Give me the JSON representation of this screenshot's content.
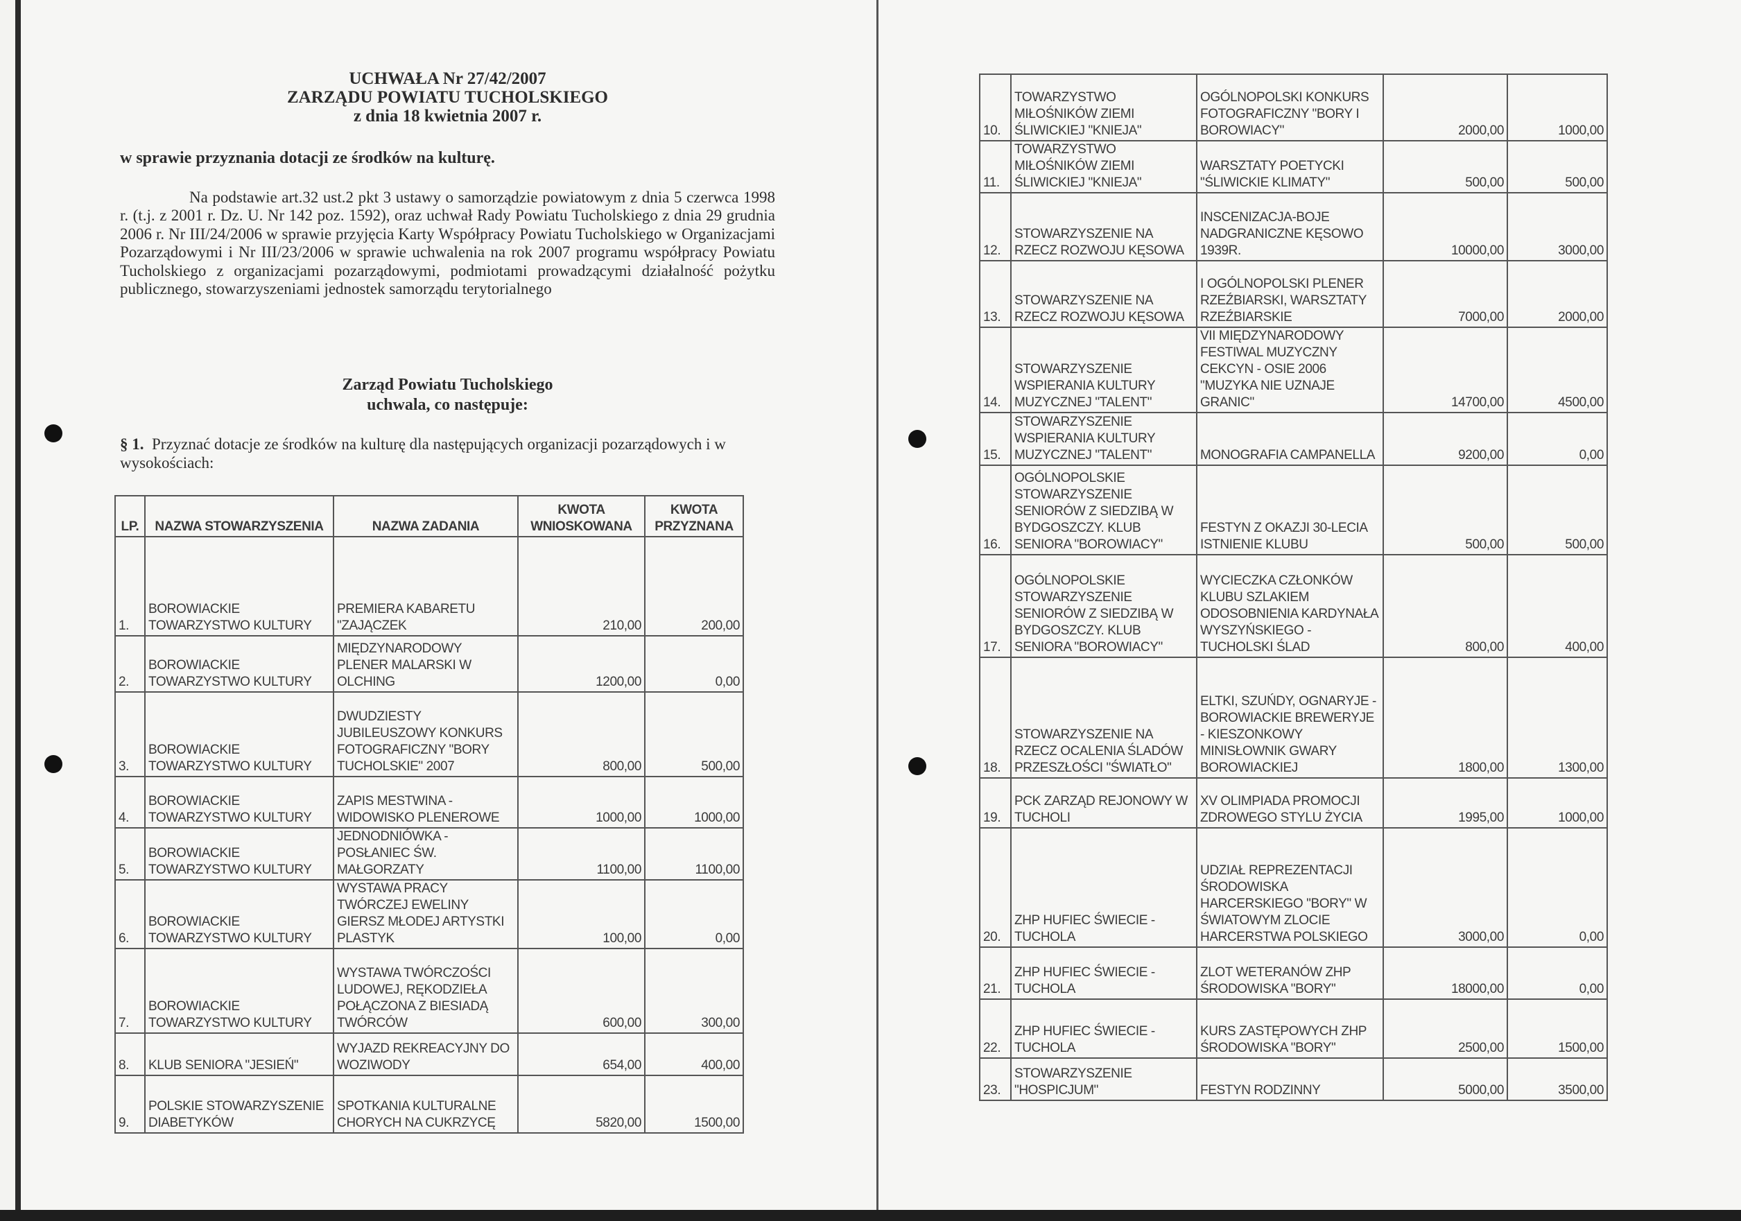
{
  "left_page": {
    "title_lines": [
      "UCHWAŁA Nr 27/42/2007",
      "ZARZĄDU POWIATU TUCHOLSKIEGO",
      "z dnia 18 kwietnia 2007 r."
    ],
    "subject": "w sprawie przyznania dotacji ze środków na kulturę.",
    "preamble": "Na podstawie art.32 ust.2 pkt 3 ustawy o samorządzie powiatowym z dnia 5 czerwca 1998 r. (t.j. z 2001 r. Dz. U. Nr 142 poz. 1592), oraz uchwał Rady Powiatu Tucholskiego z dnia 29 grudnia 2006 r. Nr III/24/2006 w sprawie przyjęcia Karty Współpracy Powiatu Tucholskiego w Organizacjami Pozarządowymi i Nr III/23/2006 w sprawie uchwalenia na rok 2007 programu współpracy Powiatu Tucholskiego z organizacjami pozarządowymi, podmiotami prowadzącymi działalność pożytku publicznego, stowarzyszeniami jednostek samorządu terytorialnego",
    "board_lines": [
      "Zarząd Powiatu Tucholskiego",
      "uchwala, co następuje:"
    ],
    "paragraph_label": "§ 1.",
    "paragraph_text": "Przyznać dotacje ze środków na kulturę dla następujących organizacji pozarządowych i w wysokościach:"
  },
  "table": {
    "headers": [
      "LP.",
      "NAZWA STOWARZYSZENIA",
      "NAZWA ZADANIA",
      "KWOTA WNIOSKOWANA",
      "KWOTA PRZYZNANA"
    ],
    "rows": [
      {
        "lp": "1.",
        "org": "BOROWIACKIE TOWARZYSTWO KULTURY",
        "task": "PREMIERA KABARETU \"ZAJĄCZEK",
        "requested": "210,00",
        "granted": "200,00"
      },
      {
        "lp": "2.",
        "org": "BOROWIACKIE TOWARZYSTWO KULTURY",
        "task": "MIĘDZYNARODOWY PLENER MALARSKI W OLCHING",
        "requested": "1200,00",
        "granted": "0,00"
      },
      {
        "lp": "3.",
        "org": "BOROWIACKIE TOWARZYSTWO KULTURY",
        "task": "DWUDZIESTY JUBILEUSZOWY KONKURS FOTOGRAFICZNY \"BORY TUCHOLSKIE\" 2007",
        "requested": "800,00",
        "granted": "500,00"
      },
      {
        "lp": "4.",
        "org": "BOROWIACKIE TOWARZYSTWO KULTURY",
        "task": "ZAPIS MESTWINA - WIDOWISKO PLENEROWE",
        "requested": "1000,00",
        "granted": "1000,00"
      },
      {
        "lp": "5.",
        "org": "BOROWIACKIE TOWARZYSTWO KULTURY",
        "task": "JEDNODNIÓWKA - POSŁANIEC ŚW. MAŁGORZATY",
        "requested": "1100,00",
        "granted": "1100,00"
      },
      {
        "lp": "6.",
        "org": "BOROWIACKIE TOWARZYSTWO KULTURY",
        "task": "WYSTAWA PRACY TWÓRCZEJ EWELINY GIERSZ MŁODEJ ARTYSTKI PLASTYK",
        "requested": "100,00",
        "granted": "0,00"
      },
      {
        "lp": "7.",
        "org": "BOROWIACKIE TOWARZYSTWO KULTURY",
        "task": "WYSTAWA TWÓRCZOŚCI LUDOWEJ, RĘKODZIEŁA POŁĄCZONA Z BIESIADĄ TWÓRCÓW",
        "requested": "600,00",
        "granted": "300,00"
      },
      {
        "lp": "8.",
        "org": "KLUB SENIORA \"JESIEŃ\"",
        "task": "WYJAZD REKREACYJNY DO WOZIWODY",
        "requested": "654,00",
        "granted": "400,00"
      },
      {
        "lp": "9.",
        "org": "POLSKIE STOWARZYSZENIE DIABETYKÓW",
        "task": "SPOTKANIA KULTURALNE CHORYCH NA CUKRZYCĘ",
        "requested": "5820,00",
        "granted": "1500,00"
      },
      {
        "lp": "10.",
        "org": "TOWARZYSTWO MIŁOŚNIKÓW ZIEMI ŚLIWICKIEJ \"KNIEJA\"",
        "task": "OGÓLNOPOLSKI KONKURS FOTOGRAFICZNY \"BORY I BOROWIACY\"",
        "requested": "2000,00",
        "granted": "1000,00"
      },
      {
        "lp": "11.",
        "org": "TOWARZYSTWO MIŁOŚNIKÓW ZIEMI ŚLIWICKIEJ \"KNIEJA\"",
        "task": "WARSZTATY POETYCKI \"ŚLIWICKIE KLIMATY\"",
        "requested": "500,00",
        "granted": "500,00"
      },
      {
        "lp": "12.",
        "org": "STOWARZYSZENIE NA RZECZ ROZWOJU KĘSOWA",
        "task": "INSCENIZACJA-BOJE NADGRANICZNE KĘSOWO 1939R.",
        "requested": "10000,00",
        "granted": "3000,00"
      },
      {
        "lp": "13.",
        "org": "STOWARZYSZENIE NA RZECZ ROZWOJU KĘSOWA",
        "task": "I OGÓLNOPOLSKI PLENER RZEŹBIARSKI, WARSZTATY RZEŹBIARSKIE",
        "requested": "7000,00",
        "granted": "2000,00"
      },
      {
        "lp": "14.",
        "org": "STOWARZYSZENIE WSPIERANIA KULTURY MUZYCZNEJ \"TALENT\"",
        "task": "VII MIĘDZYNARODOWY FESTIWAL MUZYCZNY CEKCYN - OSIE 2006 \"MUZYKA NIE UZNAJE GRANIC\"",
        "requested": "14700,00",
        "granted": "4500,00"
      },
      {
        "lp": "15.",
        "org": "STOWARZYSZENIE WSPIERANIA KULTURY MUZYCZNEJ \"TALENT\"",
        "task": "MONOGRAFIA CAMPANELLA",
        "requested": "9200,00",
        "granted": "0,00"
      },
      {
        "lp": "16.",
        "org": "OGÓLNOPOLSKIE STOWARZYSZENIE SENIORÓW Z SIEDZIBĄ W BYDGOSZCZY. KLUB SENIORA \"BOROWIACY\"",
        "task": "FESTYN Z OKAZJI 30-LECIA ISTNIENIE KLUBU",
        "requested": "500,00",
        "granted": "500,00"
      },
      {
        "lp": "17.",
        "org": "OGÓLNOPOLSKIE STOWARZYSZENIE SENIORÓW Z SIEDZIBĄ W BYDGOSZCZY. KLUB SENIORA \"BOROWIACY\"",
        "task": "WYCIECZKA CZŁONKÓW KLUBU SZLAKIEM ODOSOBNIENIA KARDYNAŁA WYSZYŃSKIEGO - TUCHOLSKI ŚLAD",
        "requested": "800,00",
        "granted": "400,00"
      },
      {
        "lp": "18.",
        "org": "STOWARZYSZENIE NA RZECZ OCALENIA ŚLADÓW PRZESZŁOŚCI \"ŚWIATŁO\"",
        "task": "ELTKI, SZUŃDY, OGNARYJE - BOROWIACKIE BREWERYJE - KIESZONKOWY MINISŁOWNIK GWARY BOROWIACKIEJ",
        "requested": "1800,00",
        "granted": "1300,00"
      },
      {
        "lp": "19.",
        "org": "PCK ZARZĄD REJONOWY W TUCHOLI",
        "task": "XV OLIMPIADA PROMOCJI ZDROWEGO STYLU ŻYCIA",
        "requested": "1995,00",
        "granted": "1000,00"
      },
      {
        "lp": "20.",
        "org": "ZHP HUFIEC ŚWIECIE - TUCHOLA",
        "task": "UDZIAŁ REPREZENTACJI ŚRODOWISKA HARCERSKIEGO \"BORY\" W ŚWIATOWYM ZLOCIE HARCERSTWA POLSKIEGO",
        "requested": "3000,00",
        "granted": "0,00"
      },
      {
        "lp": "21.",
        "org": "ZHP HUFIEC ŚWIECIE - TUCHOLA",
        "task": "ZLOT WETERANÓW ZHP ŚRODOWISKA \"BORY\"",
        "requested": "18000,00",
        "granted": "0,00"
      },
      {
        "lp": "22.",
        "org": "ZHP HUFIEC ŚWIECIE - TUCHOLA",
        "task": "KURS ZASTĘPOWYCH ZHP ŚRODOWISKA \"BORY\"",
        "requested": "2500,00",
        "granted": "1500,00"
      },
      {
        "lp": "23.",
        "org": "STOWARZYSZENIE \"HOSPICJUM\"",
        "task": "FESTYN RODZINNY",
        "requested": "5000,00",
        "granted": "3500,00"
      }
    ]
  }
}
